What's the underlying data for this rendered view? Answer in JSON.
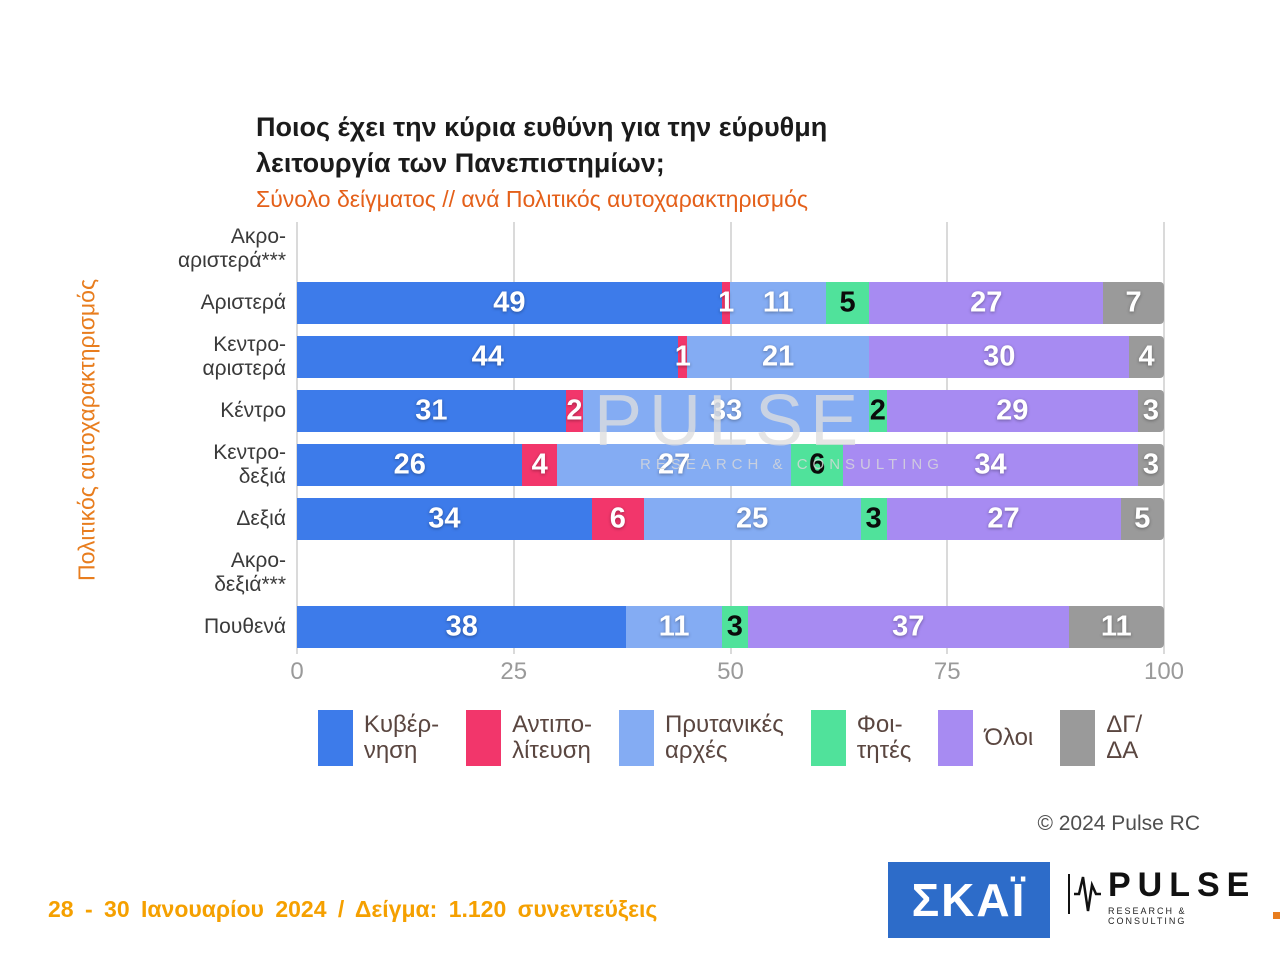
{
  "page": {
    "title_line1": "Ποιος έχει την κύρια ευθύνη για την εύρυθμη",
    "title_line2": "λειτουργία των Πανεπιστημίων;",
    "subtitle": "Σύνολο δείγματος // ανά Πολιτικός αυτοχαρακτηρισμός",
    "copyright": "© 2024 Pulse RC",
    "footer_note": "28 - 30  Ιανουαρίου  2024  /  Δείγμα:  1.120 συνεντεύξεις"
  },
  "watermark": {
    "big": "PULSE",
    "small": "RESEARCH & CONSULTING"
  },
  "logos": {
    "skai": "ΣΚΑΪ",
    "pulse": "PULSE",
    "pulse_sub": "RESEARCH & CONSULTING"
  },
  "chart_data": {
    "type": "bar",
    "orientation": "horizontal",
    "stacked": true,
    "title": "Ποιος έχει την κύρια ευθύνη για την εύρυθμη λειτουργία των Πανεπιστημίων;",
    "subtitle": "Σύνολο δείγματος // ανά Πολιτικός αυτοχαρακτηρισμός",
    "axis_label": "Πολιτικός αυτοχαρακτηρισμός",
    "xlim": [
      0,
      100
    ],
    "xticks": [
      0,
      25,
      50,
      75,
      100
    ],
    "grid": true,
    "legend_position": "bottom",
    "categories": [
      "Ακρο-αριστερά***",
      "Αριστερά",
      "Κεντρο-αριστερά",
      "Κέντρο",
      "Κεντρο-δεξιά",
      "Δεξιά",
      "Ακρο-δεξιά***",
      "Πουθενά"
    ],
    "category_display": [
      [
        "Ακρο-",
        "αριστερά***"
      ],
      [
        "Αριστερά"
      ],
      [
        "Κεντρο-",
        "αριστερά"
      ],
      [
        "Κέντρο"
      ],
      [
        "Κεντρο-",
        "δεξιά"
      ],
      [
        "Δεξιά"
      ],
      [
        "Ακρο-",
        "δεξιά***"
      ],
      [
        "Πουθενά"
      ]
    ],
    "series": [
      {
        "name": "Κυβέρνηση",
        "legend": [
          "Κυβέρ-",
          "νηση"
        ],
        "color": "#3D7BEA",
        "label_color": "#ffffff",
        "values": [
          null,
          49,
          44,
          31,
          26,
          34,
          null,
          38
        ]
      },
      {
        "name": "Αντιπολίτευση",
        "legend": [
          "Αντιπο-",
          "λίτευση"
        ],
        "color": "#F2366B",
        "label_color": "#ffffff",
        "values": [
          null,
          1,
          1,
          2,
          4,
          6,
          null,
          0
        ]
      },
      {
        "name": "Πρυτανικές αρχές",
        "legend": [
          "Πρυτανικές",
          "αρχές"
        ],
        "color": "#84ACF3",
        "label_color": "#ffffff",
        "values": [
          null,
          11,
          21,
          33,
          27,
          25,
          null,
          11
        ]
      },
      {
        "name": "Φοιτητές",
        "legend": [
          "Φοι-",
          "τητές"
        ],
        "color": "#50E29B",
        "label_color": "#0b0b0b",
        "values": [
          null,
          5,
          0,
          2,
          6,
          3,
          null,
          3
        ]
      },
      {
        "name": "Όλοι",
        "legend": [
          "Όλοι"
        ],
        "color": "#A78BF2",
        "label_color": "#ffffff",
        "values": [
          null,
          27,
          30,
          29,
          34,
          27,
          null,
          37
        ]
      },
      {
        "name": "ΔΓ/ΔΑ",
        "legend": [
          "ΔΓ/",
          "ΔΑ"
        ],
        "color": "#9A9A9A",
        "label_color": "#ffffff",
        "values": [
          null,
          7,
          4,
          3,
          3,
          5,
          null,
          11
        ]
      }
    ]
  }
}
